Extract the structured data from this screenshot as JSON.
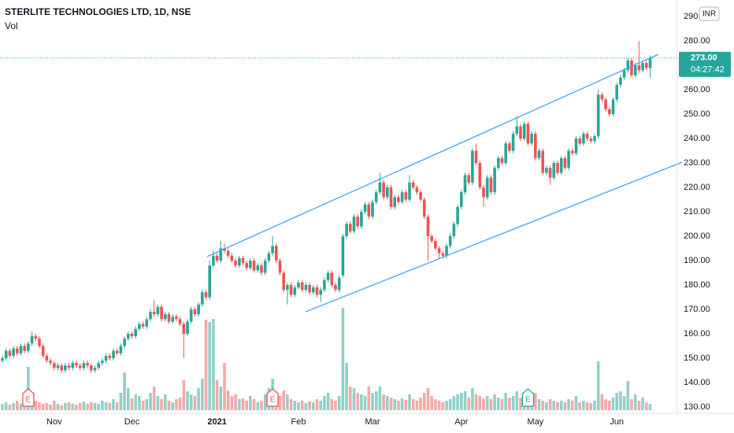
{
  "chart_data": {
    "type": "candlestick",
    "title": "STERLITE TECHNOLOGIES LTD, 1D, NSE",
    "volume_title": "Vol",
    "currency": "INR",
    "last_price": {
      "value": 273,
      "label": "273.00"
    },
    "countdown": "04:27:42",
    "up_color": "#26a69a",
    "down_color": "#ef5350",
    "volume_up_color": "#8fd1ca",
    "volume_down_color": "#f5a9a7",
    "ylim": [
      127.4,
      296.8
    ],
    "yticks": [
      {
        "value": 130,
        "label": "130.00"
      },
      {
        "value": 140,
        "label": "140.00"
      },
      {
        "value": 150,
        "label": "150.00"
      },
      {
        "value": 160,
        "label": "160.00"
      },
      {
        "value": 170,
        "label": "170.00"
      },
      {
        "value": 180,
        "label": "180.00"
      },
      {
        "value": 190,
        "label": "190.00"
      },
      {
        "value": 200,
        "label": "200.00"
      },
      {
        "value": 210,
        "label": "210.00"
      },
      {
        "value": 220,
        "label": "220.00"
      },
      {
        "value": 230,
        "label": "230.00"
      },
      {
        "value": 240,
        "label": "240.00"
      },
      {
        "value": 250,
        "label": "250.00"
      },
      {
        "value": 260,
        "label": "260.00"
      },
      {
        "value": 270,
        "label": "270.00"
      },
      {
        "value": 280,
        "label": "280.00"
      },
      {
        "value": 290,
        "label": "290.00"
      }
    ],
    "xticks": [
      {
        "value": 14,
        "label": "Nov"
      },
      {
        "value": 35,
        "label": "Dec"
      },
      {
        "value": 58,
        "label": "2021"
      },
      {
        "value": 80,
        "label": "Feb"
      },
      {
        "value": 100,
        "label": "Mar"
      },
      {
        "value": 124,
        "label": "Apr"
      },
      {
        "value": 144,
        "label": "May"
      },
      {
        "value": 166,
        "label": "Jun"
      }
    ],
    "trend_lines": [
      {
        "color": "#42a5f5",
        "x": [
          55.3,
          177.2
        ],
        "y": [
          191.6,
          274.5
        ]
      },
      {
        "color": "#42a5f5",
        "x": [
          81.9,
          183.6
        ],
        "y": [
          169.0,
          230.3
        ]
      }
    ],
    "events": [
      {
        "x": 7,
        "label": "E",
        "color": "#ef5350"
      },
      {
        "x": 73,
        "label": "E",
        "color": "#ef5350"
      },
      {
        "x": 142,
        "label": "E",
        "color": "#26a69a"
      }
    ],
    "candles": [
      [
        149,
        151,
        148,
        150
      ],
      [
        150,
        154,
        149,
        153
      ],
      [
        153,
        154,
        150,
        151
      ],
      [
        151,
        155,
        150,
        154
      ],
      [
        154,
        155,
        151,
        152
      ],
      [
        152,
        156,
        151,
        155
      ],
      [
        155,
        156,
        152,
        153
      ],
      [
        153,
        157,
        152,
        156
      ],
      [
        156,
        161,
        155,
        159
      ],
      [
        159,
        160,
        157,
        158
      ],
      [
        158,
        159,
        154,
        155
      ],
      [
        155,
        156,
        150,
        151
      ],
      [
        151,
        152,
        148,
        149
      ],
      [
        149,
        150,
        147,
        148
      ],
      [
        148,
        149,
        145,
        146
      ],
      [
        146,
        148,
        145,
        147
      ],
      [
        147,
        148,
        144,
        145
      ],
      [
        145,
        148,
        144,
        147
      ],
      [
        147,
        148,
        145,
        146
      ],
      [
        146,
        149,
        145,
        148
      ],
      [
        148,
        149,
        146,
        147
      ],
      [
        147,
        148,
        145,
        146
      ],
      [
        146,
        149,
        145,
        148
      ],
      [
        148,
        149,
        146,
        147
      ],
      [
        147,
        148,
        144,
        145
      ],
      [
        145,
        147,
        144,
        146
      ],
      [
        146,
        149,
        145,
        148
      ],
      [
        148,
        150,
        147,
        149
      ],
      [
        149,
        152,
        148,
        151
      ],
      [
        151,
        152,
        149,
        150
      ],
      [
        150,
        154,
        149,
        153
      ],
      [
        153,
        154,
        151,
        152
      ],
      [
        152,
        156,
        151,
        155
      ],
      [
        155,
        159,
        154,
        158
      ],
      [
        158,
        161,
        157,
        160
      ],
      [
        160,
        161,
        158,
        159
      ],
      [
        159,
        163,
        158,
        162
      ],
      [
        162,
        165,
        161,
        164
      ],
      [
        164,
        165,
        162,
        163
      ],
      [
        163,
        167,
        162,
        166
      ],
      [
        166,
        170,
        165,
        169
      ],
      [
        169,
        174,
        167,
        168
      ],
      [
        168,
        172,
        167,
        171
      ],
      [
        171,
        172,
        165,
        166
      ],
      [
        166,
        169,
        165,
        168
      ],
      [
        168,
        169,
        164,
        165
      ],
      [
        165,
        168,
        164,
        167
      ],
      [
        167,
        168,
        165,
        166
      ],
      [
        166,
        167,
        163,
        164
      ],
      [
        164,
        165,
        150,
        160
      ],
      [
        160,
        166,
        159,
        165
      ],
      [
        165,
        171,
        164,
        170
      ],
      [
        170,
        171,
        167,
        168
      ],
      [
        168,
        173,
        167,
        172
      ],
      [
        172,
        178,
        171,
        177
      ],
      [
        177,
        178,
        174,
        175
      ],
      [
        175,
        190,
        174,
        188
      ],
      [
        188,
        194,
        187,
        192
      ],
      [
        192,
        193,
        189,
        190
      ],
      [
        190,
        198,
        189,
        195
      ],
      [
        195,
        197,
        193,
        194
      ],
      [
        194,
        195,
        191,
        192
      ],
      [
        192,
        193,
        189,
        190
      ],
      [
        190,
        191,
        187,
        188
      ],
      [
        188,
        192,
        187,
        191
      ],
      [
        191,
        192,
        188,
        189
      ],
      [
        189,
        190,
        186,
        187
      ],
      [
        187,
        191,
        186,
        190
      ],
      [
        190,
        191,
        185,
        186
      ],
      [
        186,
        189,
        185,
        188
      ],
      [
        188,
        189,
        184,
        185
      ],
      [
        185,
        191,
        184,
        190
      ],
      [
        190,
        194,
        189,
        193
      ],
      [
        193,
        200,
        192,
        196
      ],
      [
        196,
        197,
        189,
        190
      ],
      [
        190,
        191,
        184,
        185
      ],
      [
        185,
        186,
        177,
        178
      ],
      [
        178,
        181,
        172,
        180
      ],
      [
        180,
        181,
        175,
        176
      ],
      [
        176,
        180,
        175,
        179
      ],
      [
        179,
        182,
        178,
        181
      ],
      [
        181,
        182,
        177,
        178
      ],
      [
        178,
        181,
        177,
        180
      ],
      [
        180,
        181,
        176,
        177
      ],
      [
        177,
        180,
        176,
        179
      ],
      [
        179,
        180,
        175,
        176
      ],
      [
        176,
        179,
        173,
        178
      ],
      [
        178,
        183,
        177,
        182
      ],
      [
        182,
        186,
        181,
        185
      ],
      [
        185,
        186,
        179,
        180
      ],
      [
        180,
        181,
        177,
        178
      ],
      [
        178,
        184,
        177,
        183
      ],
      [
        184,
        201,
        183,
        200
      ],
      [
        200,
        206,
        199,
        205
      ],
      [
        205,
        206,
        201,
        202
      ],
      [
        202,
        209,
        201,
        208
      ],
      [
        208,
        209,
        203,
        204
      ],
      [
        204,
        211,
        203,
        210
      ],
      [
        210,
        214,
        209,
        213
      ],
      [
        213,
        214,
        207,
        208
      ],
      [
        208,
        215,
        207,
        214
      ],
      [
        214,
        219,
        213,
        218
      ],
      [
        218,
        226,
        217,
        222
      ],
      [
        222,
        223,
        215,
        216
      ],
      [
        216,
        221,
        215,
        220
      ],
      [
        220,
        221,
        211,
        212
      ],
      [
        212,
        217,
        211,
        216
      ],
      [
        216,
        217,
        213,
        214
      ],
      [
        214,
        219,
        213,
        218
      ],
      [
        218,
        219,
        214,
        215
      ],
      [
        215,
        225,
        214,
        222
      ],
      [
        222,
        223,
        219,
        220
      ],
      [
        220,
        221,
        217,
        218
      ],
      [
        218,
        219,
        214,
        215
      ],
      [
        215,
        216,
        207,
        208
      ],
      [
        208,
        209,
        190,
        200
      ],
      [
        200,
        201,
        197,
        198
      ],
      [
        198,
        199,
        194,
        195
      ],
      [
        195,
        196,
        191,
        193
      ],
      [
        193,
        194,
        191,
        192
      ],
      [
        192,
        197,
        191,
        196
      ],
      [
        196,
        201,
        195,
        200
      ],
      [
        200,
        206,
        199,
        205
      ],
      [
        205,
        213,
        204,
        212
      ],
      [
        212,
        219,
        211,
        218
      ],
      [
        218,
        226,
        217,
        225
      ],
      [
        225,
        226,
        221,
        222
      ],
      [
        222,
        236,
        221,
        235
      ],
      [
        235,
        238,
        229,
        230
      ],
      [
        230,
        231,
        219,
        220
      ],
      [
        220,
        221,
        212,
        216
      ],
      [
        216,
        225,
        215,
        224
      ],
      [
        224,
        225,
        217,
        218
      ],
      [
        218,
        229,
        217,
        228
      ],
      [
        228,
        233,
        227,
        232
      ],
      [
        232,
        233,
        229,
        230
      ],
      [
        230,
        239,
        229,
        238
      ],
      [
        238,
        239,
        234,
        235
      ],
      [
        235,
        243,
        234,
        242
      ],
      [
        242,
        249,
        241,
        245
      ],
      [
        245,
        246,
        239,
        240
      ],
      [
        240,
        247,
        239,
        246
      ],
      [
        246,
        247,
        237,
        238
      ],
      [
        238,
        243,
        237,
        242
      ],
      [
        242,
        243,
        231,
        232
      ],
      [
        232,
        236,
        231,
        235
      ],
      [
        235,
        236,
        225,
        226
      ],
      [
        226,
        229,
        225,
        228
      ],
      [
        228,
        229,
        221,
        224
      ],
      [
        224,
        231,
        223,
        230
      ],
      [
        230,
        231,
        225,
        226
      ],
      [
        226,
        233,
        225,
        232
      ],
      [
        232,
        233,
        227,
        228
      ],
      [
        228,
        236,
        227,
        235
      ],
      [
        235,
        236,
        233,
        234
      ],
      [
        234,
        241,
        233,
        240
      ],
      [
        240,
        241,
        237,
        238
      ],
      [
        238,
        243,
        237,
        242
      ],
      [
        242,
        243,
        239,
        240
      ],
      [
        240,
        241,
        238,
        239
      ],
      [
        239,
        242,
        238,
        241
      ],
      [
        241,
        260,
        240,
        258
      ],
      [
        258,
        259,
        255,
        256
      ],
      [
        256,
        257,
        251,
        252
      ],
      [
        252,
        253,
        249,
        250
      ],
      [
        250,
        257,
        249,
        256
      ],
      [
        256,
        263,
        255,
        262
      ],
      [
        262,
        266,
        261,
        265
      ],
      [
        265,
        269,
        264,
        268
      ],
      [
        268,
        273,
        267,
        272
      ],
      [
        272,
        273,
        265,
        266
      ],
      [
        266,
        271,
        265,
        270
      ],
      [
        270,
        280,
        267,
        268
      ],
      [
        268,
        272,
        267,
        271
      ],
      [
        271,
        272,
        268,
        269
      ],
      [
        269,
        274,
        265,
        273
      ]
    ],
    "volumes": [
      8,
      10,
      7,
      9,
      12,
      8,
      9,
      55,
      20,
      12,
      10,
      8,
      9,
      7,
      12,
      8,
      6,
      9,
      10,
      8,
      7,
      9,
      11,
      8,
      10,
      9,
      8,
      12,
      10,
      9,
      14,
      10,
      22,
      48,
      28,
      15,
      20,
      18,
      12,
      14,
      22,
      30,
      18,
      14,
      20,
      12,
      10,
      14,
      16,
      38,
      24,
      20,
      18,
      28,
      40,
      115,
      112,
      116,
      38,
      30,
      60,
      25,
      18,
      20,
      14,
      15,
      12,
      18,
      14,
      10,
      12,
      20,
      28,
      40,
      22,
      18,
      25,
      20,
      14,
      12,
      10,
      12,
      9,
      11,
      10,
      14,
      12,
      18,
      22,
      14,
      12,
      18,
      130,
      60,
      30,
      28,
      22,
      20,
      18,
      30,
      22,
      24,
      30,
      20,
      18,
      16,
      14,
      12,
      15,
      13,
      20,
      14,
      12,
      16,
      22,
      28,
      18,
      14,
      12,
      10,
      12,
      14,
      18,
      20,
      22,
      24,
      16,
      28,
      20,
      18,
      15,
      18,
      14,
      20,
      16,
      14,
      22,
      16,
      18,
      24,
      16,
      18,
      14,
      20,
      22,
      14,
      12,
      10,
      14,
      12,
      10,
      12,
      10,
      14,
      12,
      18,
      10,
      12,
      10,
      9,
      12,
      62,
      20,
      14,
      12,
      16,
      22,
      24,
      18,
      37,
      14,
      20,
      12,
      16,
      10,
      8
    ]
  }
}
